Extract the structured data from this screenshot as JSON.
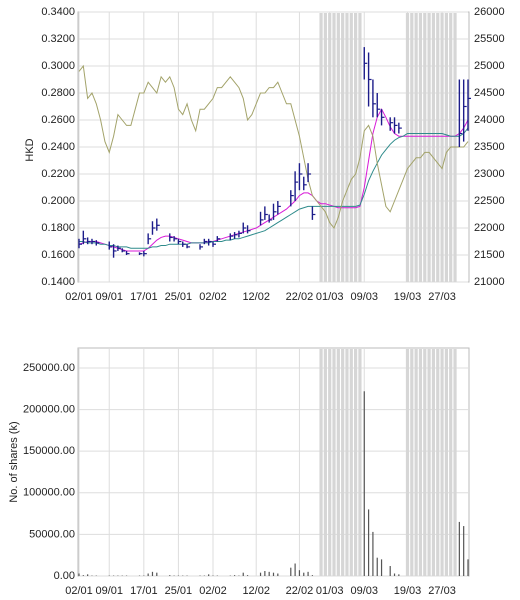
{
  "chart_data": [
    {
      "type": "ohlc",
      "ylabel": "HKD",
      "categories": [
        "02/01",
        null,
        null,
        null,
        null,
        null,
        null,
        "09/01",
        null,
        null,
        null,
        null,
        null,
        null,
        null,
        "17/01",
        null,
        null,
        null,
        null,
        null,
        null,
        null,
        "25/01",
        null,
        null,
        null,
        null,
        null,
        null,
        null,
        "02/02",
        null,
        null,
        null,
        null,
        null,
        null,
        null,
        null,
        null,
        "12/02",
        null,
        null,
        null,
        null,
        null,
        null,
        null,
        null,
        null,
        "22/02",
        null,
        null,
        null,
        null,
        null,
        null,
        "01/03",
        null,
        null,
        null,
        null,
        null,
        null,
        null,
        "09/03",
        null,
        null,
        null,
        null,
        null,
        null,
        null,
        null,
        null,
        "19/03",
        null,
        null,
        null,
        null,
        null,
        null,
        null,
        "27/03",
        null,
        null,
        null,
        null,
        null,
        null
      ],
      "high": [
        0.172,
        0.178,
        0.173,
        0.172,
        0.171,
        null,
        null,
        0.17,
        0.168,
        0.167,
        0.165,
        0.163,
        null,
        null,
        0.162,
        0.163,
        0.176,
        0.185,
        0.187,
        null,
        null,
        0.176,
        0.174,
        0.172,
        0.17,
        0.168,
        null,
        null,
        0.168,
        0.172,
        0.172,
        0.17,
        0.174,
        null,
        null,
        0.176,
        0.177,
        0.178,
        0.184,
        0.182,
        null,
        null,
        0.192,
        0.196,
        0.19,
        0.198,
        0.2,
        null,
        null,
        0.208,
        0.222,
        0.228,
        0.218,
        0.228,
        0.196,
        null,
        null,
        null,
        null,
        null,
        null,
        null,
        null,
        null,
        null,
        null,
        0.314,
        0.31,
        0.29,
        0.28,
        0.268,
        null,
        0.262,
        0.262,
        0.258,
        null,
        null,
        null,
        null,
        null,
        null,
        null,
        null,
        null,
        null,
        null,
        null,
        null,
        0.29,
        0.29,
        0.29
      ],
      "low": [
        0.165,
        0.168,
        0.168,
        0.168,
        0.167,
        null,
        null,
        0.164,
        0.158,
        0.163,
        0.162,
        0.16,
        null,
        null,
        0.16,
        0.159,
        0.168,
        0.175,
        0.178,
        null,
        null,
        0.17,
        0.17,
        0.168,
        0.166,
        0.165,
        null,
        null,
        0.164,
        0.168,
        0.167,
        0.166,
        0.17,
        null,
        null,
        0.171,
        0.172,
        0.173,
        0.176,
        0.176,
        null,
        null,
        0.182,
        0.186,
        0.184,
        0.186,
        0.19,
        null,
        null,
        0.196,
        0.2,
        0.208,
        0.208,
        0.214,
        0.186,
        null,
        null,
        null,
        null,
        null,
        null,
        null,
        null,
        null,
        null,
        null,
        0.29,
        0.27,
        0.262,
        0.262,
        0.256,
        null,
        0.252,
        0.25,
        0.25,
        null,
        null,
        null,
        null,
        null,
        null,
        null,
        null,
        null,
        null,
        null,
        null,
        null,
        0.24,
        0.244,
        0.252
      ],
      "close": [
        0.168,
        0.172,
        0.17,
        0.17,
        0.169,
        null,
        null,
        0.166,
        0.163,
        0.165,
        0.163,
        0.161,
        null,
        null,
        0.161,
        0.161,
        0.172,
        0.18,
        0.182,
        null,
        null,
        0.173,
        0.172,
        0.17,
        0.168,
        0.166,
        null,
        null,
        0.166,
        0.17,
        0.17,
        0.168,
        0.172,
        null,
        null,
        0.174,
        0.175,
        0.176,
        0.18,
        0.178,
        null,
        null,
        0.186,
        0.19,
        0.186,
        0.192,
        0.196,
        null,
        null,
        0.204,
        0.214,
        0.22,
        0.212,
        0.22,
        0.19,
        null,
        null,
        null,
        null,
        null,
        null,
        null,
        null,
        null,
        null,
        null,
        0.302,
        0.29,
        0.272,
        0.268,
        0.262,
        null,
        0.258,
        0.256,
        0.254,
        null,
        null,
        null,
        null,
        null,
        null,
        null,
        null,
        null,
        null,
        null,
        null,
        null,
        0.25,
        0.27,
        0.276
      ],
      "color": "#1c1c8a",
      "series": [
        {
          "color": "#d81ad8",
          "values": [
            0.168,
            0.169,
            0.17,
            0.17,
            0.17,
            0.169,
            0.168,
            0.167,
            0.166,
            0.165,
            0.164,
            0.163,
            0.163,
            0.163,
            0.163,
            0.163,
            0.165,
            0.168,
            0.171,
            0.173,
            0.174,
            0.174,
            0.173,
            0.172,
            0.171,
            0.17,
            0.169,
            0.169,
            0.169,
            0.169,
            0.17,
            0.17,
            0.171,
            0.172,
            0.173,
            0.174,
            0.175,
            0.176,
            0.177,
            0.178,
            0.179,
            0.18,
            0.182,
            0.184,
            0.186,
            0.188,
            0.19,
            0.192,
            0.194,
            0.197,
            0.2,
            0.204,
            0.206,
            0.206,
            0.204,
            0.2,
            0.198,
            0.198,
            0.197,
            0.196,
            0.195,
            0.195,
            0.195,
            0.195,
            0.195,
            0.196,
            0.21,
            0.23,
            0.25,
            0.262,
            0.268,
            0.262,
            0.255,
            0.25,
            0.248,
            0.248,
            0.248,
            0.248,
            0.248,
            0.248,
            0.248,
            0.248,
            0.248,
            0.248,
            0.248,
            0.248,
            0.248,
            0.248,
            0.25,
            0.254,
            0.26
          ]
        },
        {
          "color": "#2e8b8b",
          "values": [
            0.17,
            0.17,
            0.169,
            0.169,
            0.169,
            0.168,
            0.168,
            0.167,
            0.167,
            0.166,
            0.166,
            0.166,
            0.165,
            0.165,
            0.165,
            0.165,
            0.165,
            0.166,
            0.166,
            0.167,
            0.167,
            0.168,
            0.168,
            0.168,
            0.168,
            0.168,
            0.169,
            0.169,
            0.169,
            0.169,
            0.169,
            0.17,
            0.17,
            0.17,
            0.171,
            0.171,
            0.172,
            0.172,
            0.173,
            0.174,
            0.175,
            0.176,
            0.177,
            0.178,
            0.18,
            0.182,
            0.184,
            0.186,
            0.188,
            0.19,
            0.192,
            0.194,
            0.195,
            0.196,
            0.196,
            0.196,
            0.196,
            0.196,
            0.196,
            0.196,
            0.196,
            0.196,
            0.196,
            0.196,
            0.196,
            0.197,
            0.205,
            0.215,
            0.222,
            0.228,
            0.234,
            0.238,
            0.242,
            0.245,
            0.247,
            0.248,
            0.25,
            0.25,
            0.25,
            0.25,
            0.25,
            0.25,
            0.25,
            0.25,
            0.25,
            0.249,
            0.248,
            0.248,
            0.248,
            0.25,
            0.254
          ]
        },
        {
          "color": "#a3a36a",
          "axis": "y2",
          "values": [
            24900,
            25000,
            24400,
            24500,
            24300,
            24000,
            23600,
            23400,
            23700,
            24100,
            24000,
            23900,
            23900,
            24200,
            24500,
            24500,
            24700,
            24600,
            24500,
            24800,
            24700,
            24800,
            24600,
            24200,
            24100,
            24300,
            24000,
            23800,
            24200,
            24200,
            24300,
            24400,
            24600,
            24600,
            24700,
            24800,
            24700,
            24600,
            24400,
            24000,
            24100,
            24300,
            24500,
            24500,
            24600,
            24600,
            24700,
            24500,
            24300,
            24300,
            24000,
            23700,
            23300,
            22900,
            22600,
            22500,
            22400,
            22300,
            22100,
            22000,
            22200,
            22500,
            22700,
            22900,
            23000,
            23300,
            23800,
            23900,
            23700,
            23200,
            22800,
            22400,
            22300,
            22500,
            22700,
            22900,
            23100,
            23200,
            23300,
            23300,
            23400,
            23400,
            23300,
            23200,
            23100,
            23400,
            23500,
            23500,
            23500,
            23500,
            23600
          ]
        }
      ],
      "ylim": [
        0.14,
        0.34
      ],
      "yticks": [
        {
          "value": 0.14,
          "label": "0.1400"
        },
        {
          "value": 0.16,
          "label": "0.1600"
        },
        {
          "value": 0.18,
          "label": "0.1800"
        },
        {
          "value": 0.2,
          "label": "0.2000"
        },
        {
          "value": 0.22,
          "label": "0.2200"
        },
        {
          "value": 0.24,
          "label": "0.2400"
        },
        {
          "value": 0.26,
          "label": "0.2600"
        },
        {
          "value": 0.28,
          "label": "0.2800"
        },
        {
          "value": 0.3,
          "label": "0.3000"
        },
        {
          "value": 0.32,
          "label": "0.3200"
        },
        {
          "value": 0.34,
          "label": "0.3400"
        }
      ],
      "y2lim": [
        21000,
        26000
      ],
      "y2ticks": [
        21000,
        21500,
        22000,
        22500,
        23000,
        23500,
        24000,
        24500,
        25000,
        25500,
        26000
      ],
      "grid": true
    },
    {
      "type": "bar",
      "ylabel": "No. of shares (k)",
      "categories": [
        "02/01",
        null,
        null,
        null,
        null,
        null,
        null,
        "09/01",
        null,
        null,
        null,
        null,
        null,
        null,
        null,
        "17/01",
        null,
        null,
        null,
        null,
        null,
        null,
        null,
        "25/01",
        null,
        null,
        null,
        null,
        null,
        null,
        null,
        "02/02",
        null,
        null,
        null,
        null,
        null,
        null,
        null,
        null,
        null,
        "12/02",
        null,
        null,
        null,
        null,
        null,
        null,
        null,
        null,
        null,
        "22/02",
        null,
        null,
        null,
        null,
        null,
        null,
        "01/03",
        null,
        null,
        null,
        null,
        null,
        null,
        null,
        "09/03",
        null,
        null,
        null,
        null,
        null,
        null,
        null,
        null,
        null,
        "19/03",
        null,
        null,
        null,
        null,
        null,
        null,
        null,
        "27/03",
        null,
        null,
        null,
        null,
        null,
        null
      ],
      "values": [
        3000,
        1000,
        2000,
        500,
        500,
        null,
        null,
        500,
        500,
        500,
        500,
        500,
        null,
        null,
        500,
        500,
        3000,
        5000,
        4000,
        null,
        null,
        1000,
        500,
        500,
        500,
        500,
        null,
        null,
        500,
        500,
        2000,
        500,
        500,
        null,
        null,
        500,
        1000,
        500,
        4000,
        1000,
        null,
        null,
        4000,
        6000,
        5000,
        4000,
        3000,
        null,
        null,
        10000,
        15000,
        7000,
        4000,
        5000,
        1000,
        null,
        null,
        null,
        null,
        null,
        null,
        null,
        null,
        null,
        null,
        null,
        222000,
        80000,
        53000,
        22000,
        20000,
        null,
        12000,
        3000,
        2000,
        null,
        null,
        null,
        null,
        null,
        null,
        null,
        null,
        null,
        null,
        null,
        null,
        null,
        65000,
        60000,
        20000
      ],
      "color": "#555555",
      "ylim": [
        0,
        274000
      ],
      "yticks": [
        {
          "value": 0,
          "label": "0.00"
        },
        {
          "value": 50000,
          "label": "50000.00"
        },
        {
          "value": 100000,
          "label": "100000.00"
        },
        {
          "value": 150000,
          "label": "150000.00"
        },
        {
          "value": 200000,
          "label": "200000.00"
        },
        {
          "value": 250000,
          "label": "250000.00"
        }
      ],
      "grid": true
    }
  ]
}
